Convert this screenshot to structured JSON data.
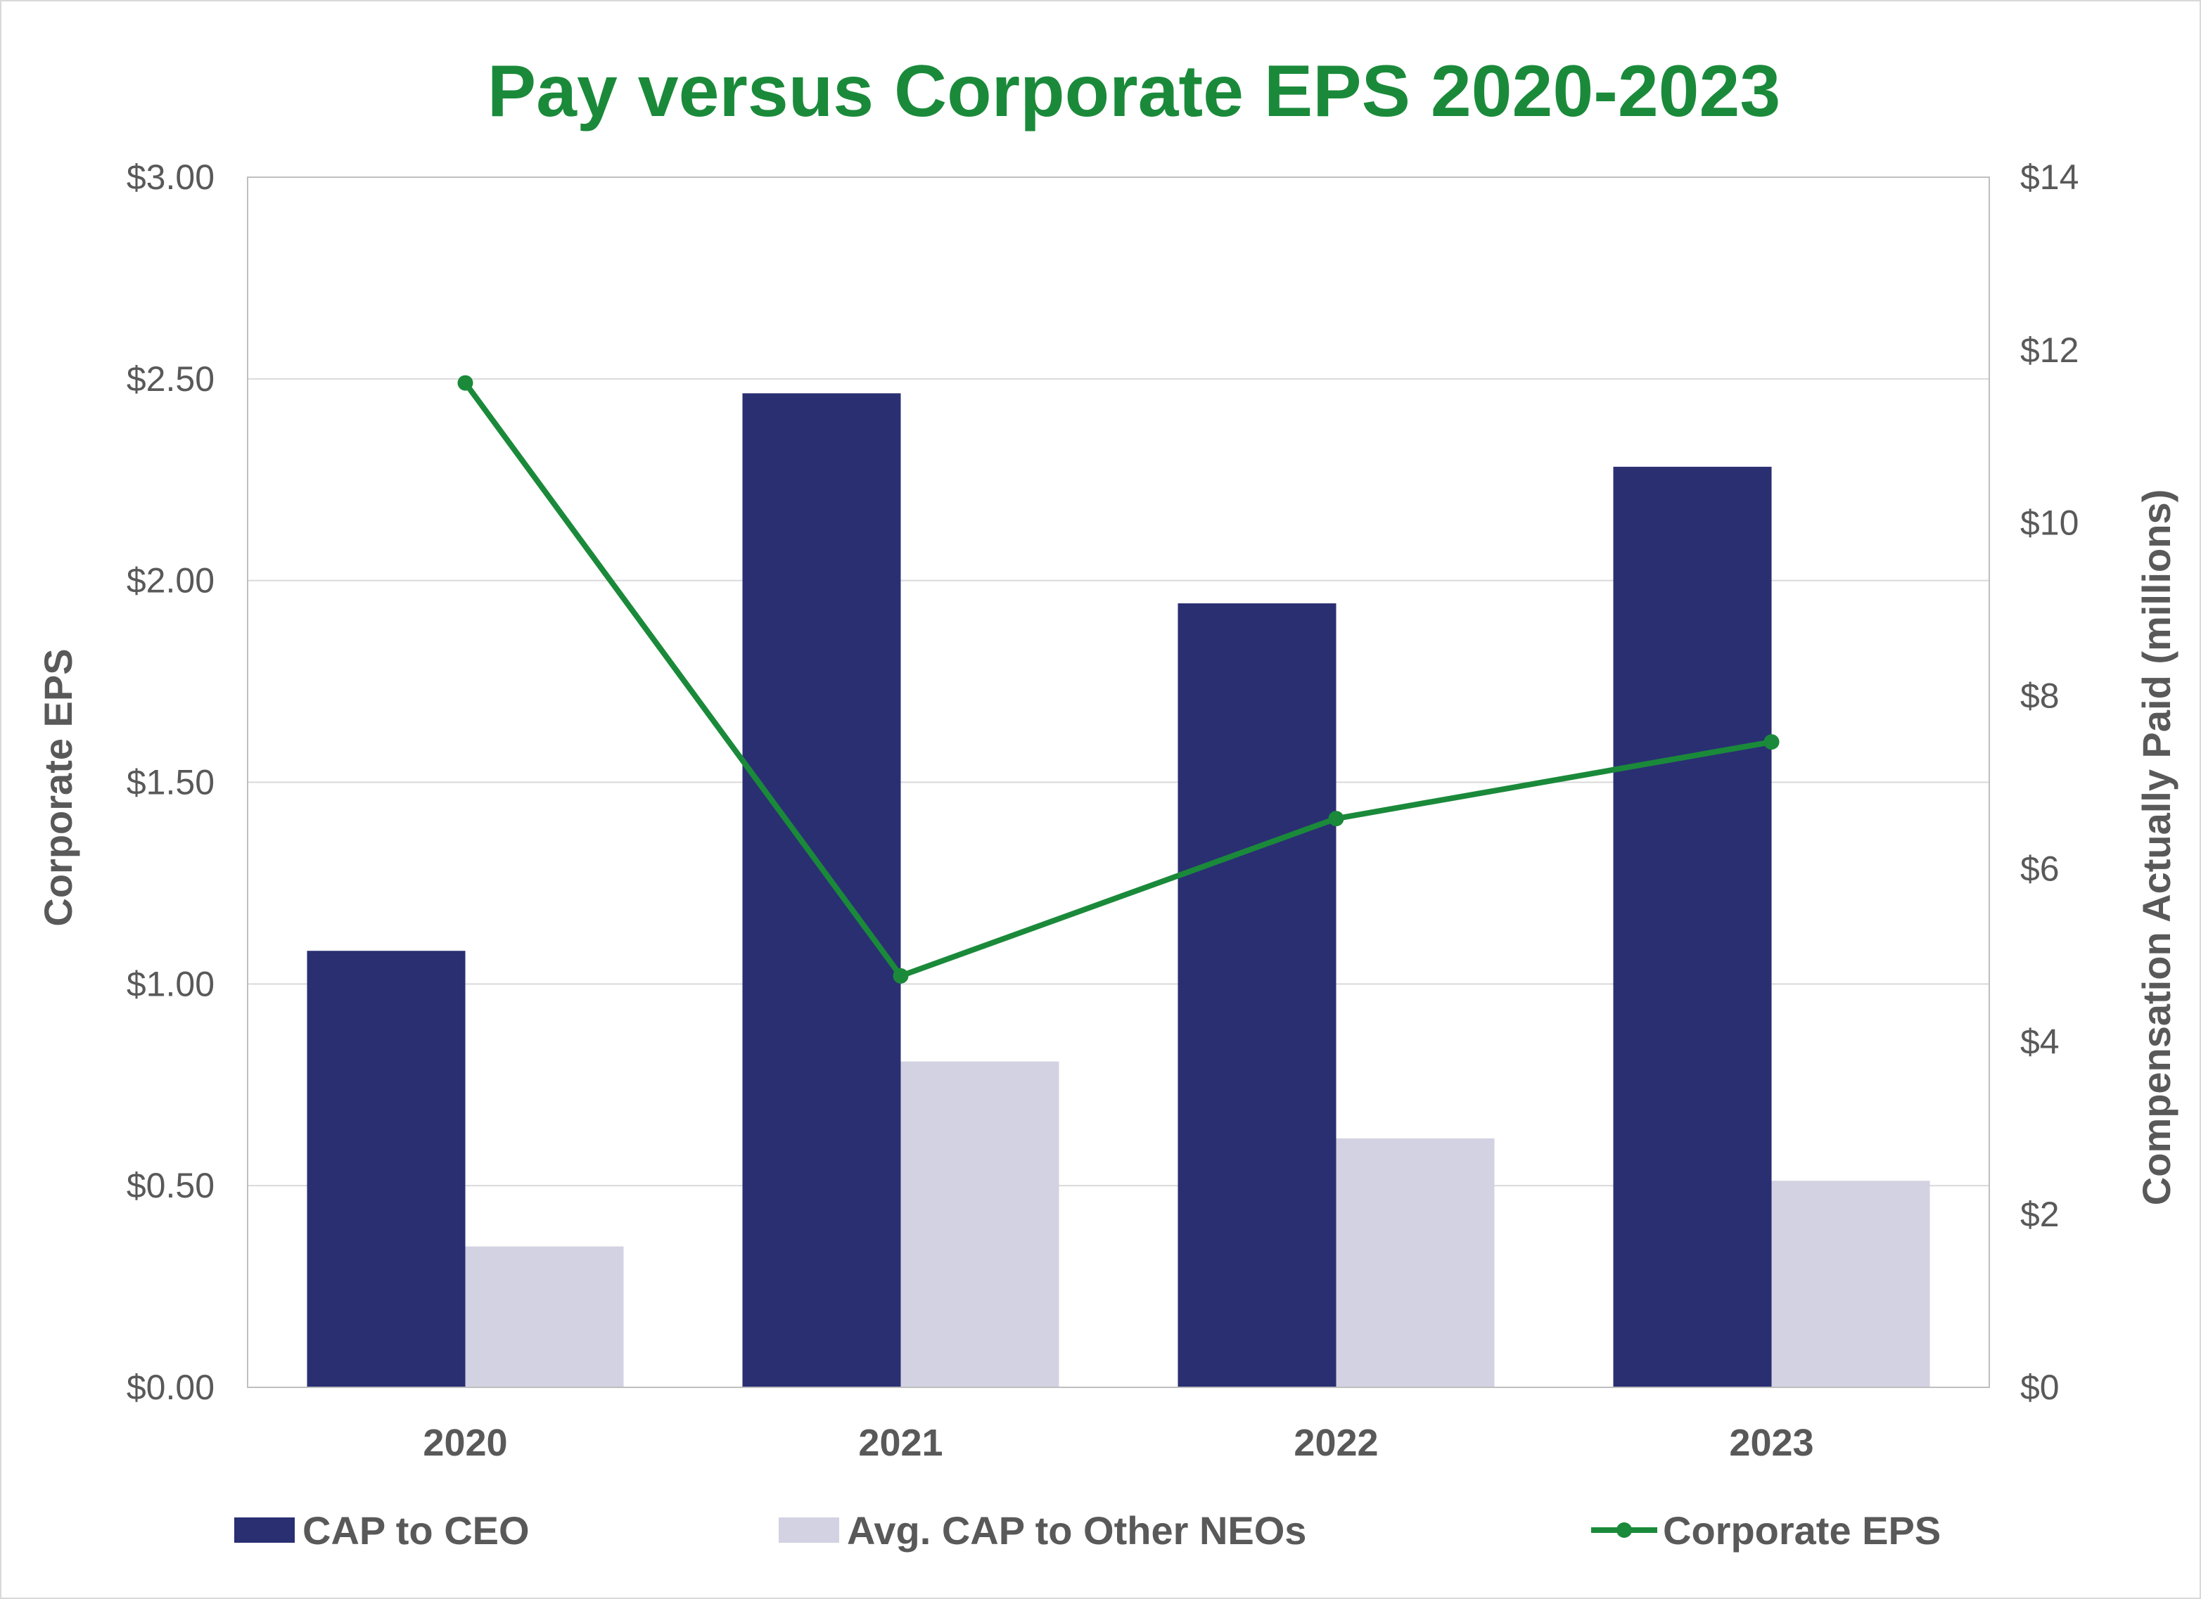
{
  "chart_data": {
    "type": "bar",
    "title": "Pay versus Corporate EPS 2020-2023",
    "categories": [
      "2020",
      "2021",
      "2022",
      "2023"
    ],
    "y_left": {
      "label": "Corporate EPS",
      "range": [
        0,
        3
      ],
      "ticks": [
        "$0.00",
        "$0.50",
        "$1.00",
        "$1.50",
        "$2.00",
        "$2.50",
        "$3.00"
      ]
    },
    "y_right": {
      "label": "Compensation Actually Paid (millions)",
      "range": [
        0,
        14
      ],
      "ticks": [
        "$0",
        "$2",
        "$4",
        "$6",
        "$8",
        "$10",
        "$12",
        "$14"
      ]
    },
    "series": [
      {
        "name": "CAP to CEO",
        "type": "bar",
        "axis": "right",
        "values": [
          5.05,
          11.5,
          9.07,
          10.65
        ],
        "color": "#2a2f72"
      },
      {
        "name": "Avg. CAP to Other NEOs",
        "type": "bar",
        "axis": "right",
        "values": [
          1.63,
          3.77,
          2.88,
          2.39
        ],
        "color": "#d2d2e3"
      },
      {
        "name": "Corporate EPS",
        "type": "line",
        "axis": "left",
        "values": [
          2.49,
          1.02,
          1.41,
          1.6
        ],
        "color": "#1a8a3a"
      }
    ],
    "grid": true,
    "legend_position": "bottom"
  }
}
